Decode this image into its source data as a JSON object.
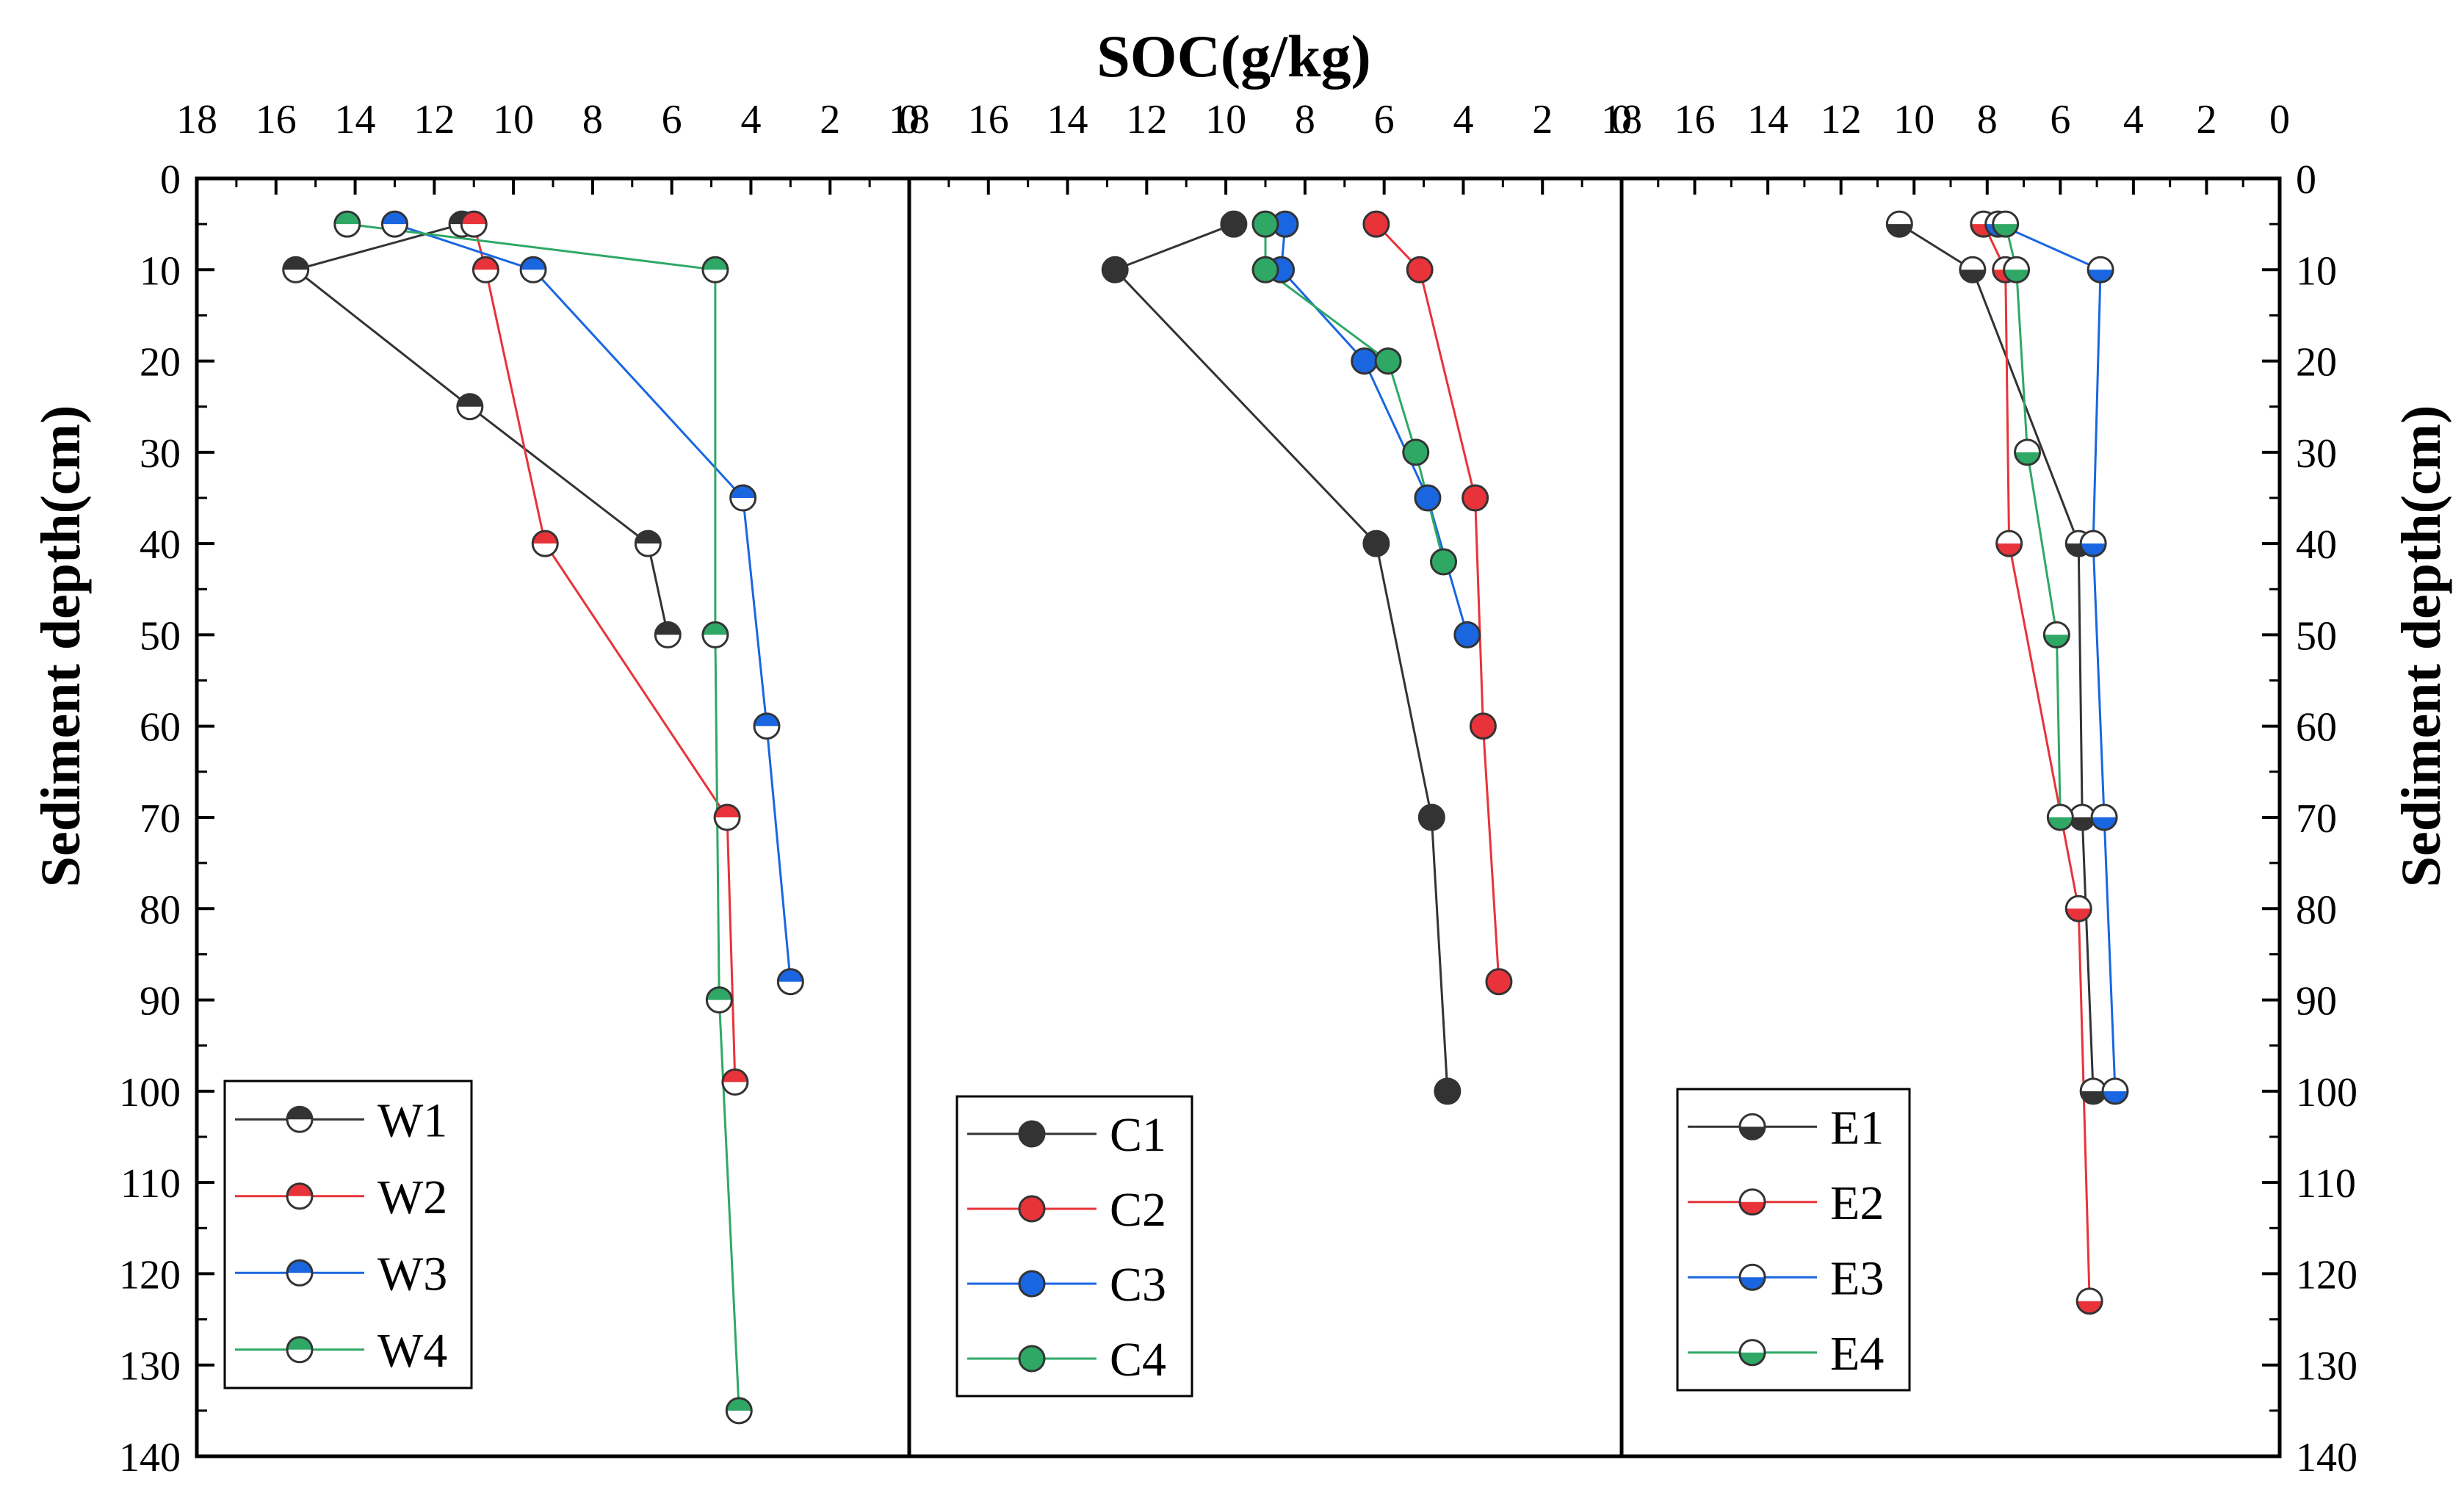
{
  "chart_data": {
    "type": "scatter",
    "title": "SOC(g/kg)",
    "xlabel": "SOC(g/kg)",
    "ylabel": "Sediment depth(cm)",
    "xlim": [
      18,
      0
    ],
    "ylim": [
      0,
      140
    ],
    "x_ticks": [
      "18",
      "16",
      "14",
      "12",
      "10",
      "8",
      "6",
      "4",
      "2",
      "0"
    ],
    "y_ticks": [
      "0",
      "10",
      "20",
      "30",
      "40",
      "50",
      "60",
      "70",
      "80",
      "90",
      "100",
      "110",
      "120",
      "130",
      "140"
    ],
    "colors": {
      "black": "#333333",
      "red": "#e8333a",
      "blue": "#1a66e0",
      "green": "#2fa866"
    },
    "panels": [
      {
        "name": "W",
        "marker": "half-top",
        "series": [
          {
            "name": "W1",
            "color": "#333333",
            "points": [
              [
                11.3,
                5
              ],
              [
                15.5,
                10
              ],
              [
                11.1,
                25
              ],
              [
                6.6,
                40
              ],
              [
                6.1,
                50
              ]
            ]
          },
          {
            "name": "W2",
            "color": "#e8333a",
            "points": [
              [
                11.0,
                5
              ],
              [
                10.7,
                10
              ],
              [
                9.2,
                40
              ],
              [
                4.6,
                70
              ],
              [
                4.4,
                99
              ]
            ]
          },
          {
            "name": "W3",
            "color": "#1a66e0",
            "points": [
              [
                13.0,
                5
              ],
              [
                9.5,
                10
              ],
              [
                4.2,
                35
              ],
              [
                3.6,
                60
              ],
              [
                3.0,
                88
              ]
            ]
          },
          {
            "name": "W4",
            "color": "#2fa866",
            "points": [
              [
                14.2,
                5
              ],
              [
                4.9,
                10
              ],
              [
                4.9,
                50
              ],
              [
                4.8,
                90
              ],
              [
                4.3,
                135
              ]
            ]
          }
        ]
      },
      {
        "name": "C",
        "marker": "full",
        "series": [
          {
            "name": "C1",
            "color": "#333333",
            "points": [
              [
                9.8,
                5
              ],
              [
                12.8,
                10
              ],
              [
                6.2,
                40
              ],
              [
                4.8,
                70
              ],
              [
                4.4,
                100
              ]
            ]
          },
          {
            "name": "C2",
            "color": "#e8333a",
            "points": [
              [
                6.2,
                5
              ],
              [
                5.1,
                10
              ],
              [
                3.7,
                35
              ],
              [
                3.5,
                60
              ],
              [
                3.1,
                88
              ]
            ]
          },
          {
            "name": "C3",
            "color": "#1a66e0",
            "points": [
              [
                8.5,
                5
              ],
              [
                8.6,
                10
              ],
              [
                6.5,
                20
              ],
              [
                4.9,
                35
              ],
              [
                3.9,
                50
              ]
            ]
          },
          {
            "name": "C4",
            "color": "#2fa866",
            "points": [
              [
                9.0,
                5
              ],
              [
                9.0,
                10
              ],
              [
                5.9,
                20
              ],
              [
                5.2,
                30
              ],
              [
                4.5,
                42
              ]
            ]
          }
        ]
      },
      {
        "name": "E",
        "marker": "half-bottom",
        "series": [
          {
            "name": "E1",
            "color": "#333333",
            "points": [
              [
                10.4,
                5
              ],
              [
                8.4,
                10
              ],
              [
                5.5,
                40
              ],
              [
                5.4,
                70
              ],
              [
                5.1,
                100
              ]
            ]
          },
          {
            "name": "E2",
            "color": "#e8333a",
            "points": [
              [
                8.1,
                5
              ],
              [
                7.5,
                10
              ],
              [
                7.4,
                40
              ],
              [
                5.5,
                80
              ],
              [
                5.2,
                123
              ]
            ]
          },
          {
            "name": "E3",
            "color": "#1a66e0",
            "points": [
              [
                7.7,
                5
              ],
              [
                4.9,
                10
              ],
              [
                5.1,
                40
              ],
              [
                4.8,
                70
              ],
              [
                4.5,
                100
              ]
            ]
          },
          {
            "name": "E4",
            "color": "#2fa866",
            "points": [
              [
                7.5,
                5
              ],
              [
                7.2,
                10
              ],
              [
                6.9,
                30
              ],
              [
                6.1,
                50
              ],
              [
                6.0,
                70
              ]
            ]
          }
        ]
      }
    ]
  }
}
